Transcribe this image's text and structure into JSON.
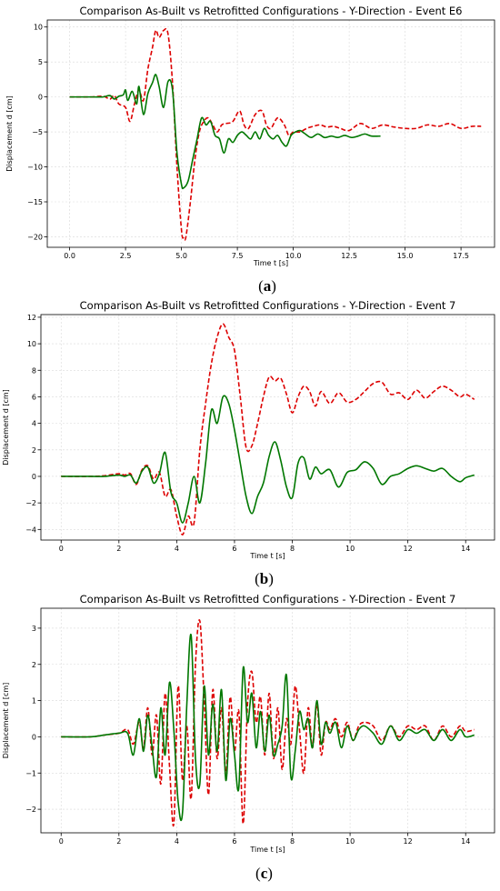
{
  "colors": {
    "as_built": "#dd0000",
    "retrofitted": "#007700",
    "grid": "#d9d9d9"
  },
  "chart_data": [
    {
      "type": "line",
      "caption": "a",
      "title": "Comparison As-Built vs Retrofitted Configurations - Y-Direction - Event E6",
      "xlabel": "Time t [s]",
      "ylabel": "Displacement d [cm]",
      "xlim": [
        -1.0,
        19.0
      ],
      "ylim": [
        -21.5,
        11.0
      ],
      "xticks": [
        0,
        2.5,
        5,
        7.5,
        10,
        12.5,
        15,
        17.5
      ],
      "xtick_labels": [
        "0.0",
        "2.5",
        "5.0",
        "7.5",
        "10.0",
        "12.5",
        "15.0",
        "17.5"
      ],
      "yticks": [
        -20,
        -15,
        -10,
        -5,
        0,
        5,
        10
      ],
      "ytick_labels": [
        "−20",
        "−15",
        "−10",
        "−5",
        "0",
        "5",
        "10"
      ],
      "grid": true,
      "series": [
        {
          "style": "dashed",
          "color": "#dd0000",
          "x": [
            0,
            1.0,
            1.5,
            1.8,
            2.0,
            2.2,
            2.5,
            2.7,
            2.9,
            3.1,
            3.3,
            3.5,
            3.7,
            3.85,
            4.0,
            4.2,
            4.4,
            4.6,
            4.8,
            5.0,
            5.1,
            5.2,
            5.4,
            5.6,
            5.8,
            6.0,
            6.2,
            6.4,
            6.6,
            6.8,
            7.0,
            7.3,
            7.6,
            7.8,
            8.0,
            8.3,
            8.6,
            8.8,
            9.0,
            9.3,
            9.6,
            9.8,
            10.0,
            10.3,
            10.6,
            10.9,
            11.2,
            11.5,
            11.8,
            12.1,
            12.5,
            13.0,
            13.5,
            14.0,
            14.5,
            15.0,
            15.5,
            16.0,
            16.5,
            17.0,
            17.5,
            18.0,
            18.4
          ],
          "y": [
            0,
            0,
            0.1,
            -0.3,
            0.2,
            -1.0,
            -1.5,
            -3.5,
            -1.0,
            1.0,
            -0.5,
            4.0,
            7.0,
            9.5,
            8.5,
            9.5,
            9.0,
            2.0,
            -10.0,
            -19.0,
            -20.2,
            -20.0,
            -15.0,
            -9.0,
            -5.0,
            -3.5,
            -3.0,
            -4.0,
            -5.0,
            -4.0,
            -3.8,
            -3.5,
            -2.0,
            -4.0,
            -4.5,
            -2.5,
            -2.0,
            -4.0,
            -4.5,
            -3.0,
            -4.0,
            -5.5,
            -5.0,
            -5.0,
            -4.5,
            -4.2,
            -4.0,
            -4.3,
            -4.2,
            -4.5,
            -4.8,
            -3.8,
            -4.5,
            -4.0,
            -4.3,
            -4.5,
            -4.5,
            -4.0,
            -4.2,
            -3.8,
            -4.5,
            -4.2,
            -4.2
          ]
        },
        {
          "style": "solid",
          "color": "#007700",
          "x": [
            0,
            1.0,
            1.5,
            1.8,
            2.0,
            2.2,
            2.4,
            2.5,
            2.6,
            2.8,
            3.0,
            3.1,
            3.3,
            3.5,
            3.7,
            3.85,
            4.0,
            4.2,
            4.4,
            4.6,
            4.8,
            5.0,
            5.1,
            5.3,
            5.5,
            5.7,
            5.9,
            6.1,
            6.3,
            6.5,
            6.7,
            6.9,
            7.1,
            7.3,
            7.5,
            7.7,
            7.9,
            8.1,
            8.3,
            8.5,
            8.7,
            8.9,
            9.1,
            9.3,
            9.5,
            9.7,
            9.9,
            10.1,
            10.3,
            10.5,
            10.8,
            11.1,
            11.4,
            11.7,
            12.0,
            12.3,
            12.6,
            12.9,
            13.2,
            13.5,
            13.9
          ],
          "y": [
            0,
            0,
            0,
            0.2,
            -0.3,
            0.1,
            0.3,
            1.0,
            -0.5,
            0.8,
            -1.0,
            1.5,
            -2.5,
            0.5,
            2.0,
            3.2,
            1.5,
            -1.5,
            2.2,
            1.0,
            -8.0,
            -12.5,
            -13.0,
            -12.0,
            -9.0,
            -6.0,
            -3.0,
            -4.0,
            -3.5,
            -5.5,
            -6.0,
            -8.0,
            -6.0,
            -6.5,
            -5.5,
            -5.0,
            -5.5,
            -6.0,
            -5.0,
            -6.0,
            -4.5,
            -5.5,
            -6.0,
            -5.5,
            -6.5,
            -7.0,
            -5.5,
            -5.0,
            -4.8,
            -5.2,
            -5.8,
            -5.3,
            -5.8,
            -5.6,
            -5.8,
            -5.5,
            -5.8,
            -5.6,
            -5.3,
            -5.6,
            -5.6
          ]
        }
      ]
    },
    {
      "type": "line",
      "caption": "b",
      "title": "Comparison As-Built vs Retrofitted Configurations - Y-Direction - Event 7",
      "xlabel": "Time t [s]",
      "ylabel": "Displacement d [cm]",
      "xlim": [
        -0.7,
        15.0
      ],
      "ylim": [
        -4.8,
        12.2
      ],
      "xticks": [
        0,
        2,
        4,
        6,
        8,
        10,
        12,
        14
      ],
      "xtick_labels": [
        "0",
        "2",
        "4",
        "6",
        "8",
        "10",
        "12",
        "14"
      ],
      "yticks": [
        -4,
        -2,
        0,
        2,
        4,
        6,
        8,
        10,
        12
      ],
      "ytick_labels": [
        "−4",
        "−2",
        "0",
        "2",
        "4",
        "6",
        "8",
        "10",
        "12"
      ],
      "grid": true,
      "series": [
        {
          "style": "dashed",
          "color": "#dd0000",
          "x": [
            0,
            1.0,
            1.5,
            2.0,
            2.2,
            2.4,
            2.6,
            2.8,
            3.0,
            3.2,
            3.4,
            3.6,
            3.8,
            4.0,
            4.2,
            4.4,
            4.6,
            4.8,
            5.0,
            5.2,
            5.4,
            5.6,
            5.8,
            6.0,
            6.2,
            6.4,
            6.6,
            6.8,
            7.0,
            7.2,
            7.4,
            7.6,
            7.8,
            8.0,
            8.2,
            8.4,
            8.6,
            8.8,
            9.0,
            9.3,
            9.6,
            9.9,
            10.2,
            10.5,
            10.8,
            11.1,
            11.4,
            11.7,
            12.0,
            12.3,
            12.6,
            12.9,
            13.2,
            13.5,
            13.8,
            14.0,
            14.3
          ],
          "y": [
            0,
            0,
            0.05,
            0.2,
            0.1,
            0.2,
            -0.6,
            0.5,
            0.8,
            -0.2,
            0.3,
            -1.5,
            -1.0,
            -3.0,
            -4.4,
            -3.0,
            -3.5,
            2.0,
            5.5,
            8.5,
            10.5,
            11.5,
            10.5,
            9.5,
            6.0,
            2.2,
            2.3,
            4.0,
            6.0,
            7.5,
            7.2,
            7.4,
            6.2,
            4.8,
            6.0,
            6.8,
            6.4,
            5.3,
            6.4,
            5.5,
            6.3,
            5.6,
            5.8,
            6.4,
            7.0,
            7.1,
            6.2,
            6.3,
            5.8,
            6.5,
            5.9,
            6.4,
            6.8,
            6.5,
            6.0,
            6.2,
            5.8
          ]
        },
        {
          "style": "solid",
          "color": "#007700",
          "x": [
            0,
            1.0,
            1.5,
            2.0,
            2.2,
            2.4,
            2.6,
            2.8,
            3.0,
            3.2,
            3.4,
            3.6,
            3.8,
            4.0,
            4.2,
            4.4,
            4.6,
            4.8,
            5.0,
            5.2,
            5.4,
            5.6,
            5.8,
            6.0,
            6.2,
            6.4,
            6.6,
            6.8,
            7.0,
            7.2,
            7.4,
            7.6,
            7.8,
            8.0,
            8.2,
            8.4,
            8.6,
            8.8,
            9.0,
            9.3,
            9.6,
            9.9,
            10.2,
            10.5,
            10.8,
            11.1,
            11.4,
            11.7,
            12.0,
            12.3,
            12.6,
            12.9,
            13.2,
            13.5,
            13.8,
            14.0,
            14.3
          ],
          "y": [
            0,
            0,
            0,
            0.1,
            0.0,
            0.1,
            -0.5,
            0.4,
            0.7,
            -0.5,
            0.2,
            1.8,
            -1.2,
            -2.0,
            -3.5,
            -2.0,
            0.0,
            -2.0,
            1.0,
            5.0,
            4.0,
            6.0,
            5.5,
            3.5,
            1.0,
            -1.5,
            -2.8,
            -1.5,
            -0.5,
            1.5,
            2.6,
            1.2,
            -0.8,
            -1.6,
            1.0,
            1.4,
            -0.2,
            0.7,
            0.2,
            0.5,
            -0.8,
            0.3,
            0.5,
            1.1,
            0.6,
            -0.6,
            0.0,
            0.2,
            0.6,
            0.8,
            0.6,
            0.4,
            0.6,
            0.0,
            -0.4,
            -0.1,
            0.1
          ]
        }
      ]
    },
    {
      "type": "line",
      "caption": "c",
      "title": "Comparison As-Built vs Retrofitted Configurations - Y-Direction - Event 7",
      "xlabel": "Time t [s]",
      "ylabel": "Displacement d [cm]",
      "xlim": [
        -0.7,
        15.0
      ],
      "ylim": [
        -2.65,
        3.55
      ],
      "xticks": [
        0,
        2,
        4,
        6,
        8,
        10,
        12,
        14
      ],
      "xtick_labels": [
        "0",
        "2",
        "4",
        "6",
        "8",
        "10",
        "12",
        "14"
      ],
      "yticks": [
        -2,
        -1,
        0,
        1,
        2,
        3
      ],
      "ytick_labels": [
        "−2",
        "−1",
        "0",
        "1",
        "2",
        "3"
      ],
      "grid": true,
      "series": [
        {
          "style": "dashed",
          "color": "#dd0000",
          "x": [
            0,
            1.0,
            1.5,
            2.0,
            2.3,
            2.5,
            2.7,
            2.85,
            3.0,
            3.15,
            3.3,
            3.45,
            3.6,
            3.75,
            3.9,
            4.05,
            4.2,
            4.35,
            4.5,
            4.65,
            4.8,
            4.95,
            5.1,
            5.25,
            5.4,
            5.55,
            5.7,
            5.85,
            6.0,
            6.15,
            6.3,
            6.45,
            6.6,
            6.75,
            6.9,
            7.05,
            7.2,
            7.35,
            7.5,
            7.65,
            7.8,
            7.95,
            8.1,
            8.25,
            8.4,
            8.55,
            8.7,
            8.85,
            9.0,
            9.15,
            9.3,
            9.5,
            9.7,
            9.9,
            10.1,
            10.3,
            10.5,
            10.8,
            11.1,
            11.4,
            11.7,
            12.0,
            12.3,
            12.6,
            12.9,
            13.2,
            13.5,
            13.8,
            14.0,
            14.3
          ],
          "y": [
            0,
            0,
            0.05,
            0.1,
            0.2,
            -0.2,
            0.4,
            -0.3,
            0.8,
            -0.5,
            0.6,
            -1.3,
            1.2,
            -0.8,
            -2.4,
            1.4,
            -1.2,
            0.3,
            -1.7,
            2.0,
            3.2,
            1.0,
            -1.6,
            1.3,
            -0.6,
            0.8,
            -1.0,
            1.1,
            -0.4,
            0.7,
            -2.4,
            0.9,
            1.8,
            0.4,
            1.1,
            -0.5,
            1.2,
            -0.6,
            0.8,
            -0.9,
            0.5,
            -0.2,
            1.4,
            0.2,
            -1.0,
            0.8,
            -0.3,
            0.9,
            -0.5,
            0.4,
            0.2,
            0.5,
            0.0,
            0.4,
            -0.1,
            0.3,
            0.4,
            0.3,
            -0.1,
            0.3,
            0.0,
            0.3,
            0.2,
            0.3,
            -0.1,
            0.3,
            0.0,
            0.3,
            0.15,
            0.2
          ]
        },
        {
          "style": "solid",
          "color": "#007700",
          "x": [
            0,
            1.0,
            1.5,
            2.0,
            2.3,
            2.5,
            2.7,
            2.85,
            3.0,
            3.15,
            3.3,
            3.45,
            3.6,
            3.75,
            3.9,
            4.05,
            4.2,
            4.35,
            4.5,
            4.65,
            4.8,
            4.95,
            5.1,
            5.25,
            5.4,
            5.55,
            5.7,
            5.85,
            6.0,
            6.15,
            6.3,
            6.45,
            6.6,
            6.75,
            6.9,
            7.05,
            7.2,
            7.35,
            7.5,
            7.65,
            7.8,
            7.95,
            8.1,
            8.25,
            8.4,
            8.55,
            8.7,
            8.85,
            9.0,
            9.15,
            9.3,
            9.5,
            9.7,
            9.9,
            10.1,
            10.3,
            10.5,
            10.8,
            11.1,
            11.4,
            11.7,
            12.0,
            12.3,
            12.6,
            12.9,
            13.2,
            13.5,
            13.8,
            14.0,
            14.3
          ],
          "y": [
            0,
            0,
            0.05,
            0.1,
            0.1,
            -0.5,
            0.5,
            -0.4,
            0.6,
            -0.3,
            -1.1,
            0.8,
            -0.5,
            1.5,
            0.2,
            -1.8,
            -2.1,
            0.9,
            2.8,
            -0.6,
            -1.3,
            1.4,
            -0.5,
            0.9,
            -0.4,
            1.3,
            -1.2,
            0.5,
            -0.5,
            -1.4,
            1.9,
            0.4,
            1.2,
            -0.3,
            0.7,
            -0.4,
            0.6,
            -0.5,
            -0.2,
            0.3,
            1.7,
            -1.1,
            -0.4,
            0.7,
            0.2,
            0.5,
            -0.3,
            1.0,
            -0.2,
            0.4,
            0.1,
            0.4,
            -0.3,
            0.3,
            -0.1,
            0.2,
            0.3,
            0.1,
            -0.2,
            0.3,
            -0.1,
            0.2,
            0.1,
            0.2,
            -0.1,
            0.2,
            -0.1,
            0.2,
            0.0,
            0.05
          ]
        }
      ]
    }
  ]
}
